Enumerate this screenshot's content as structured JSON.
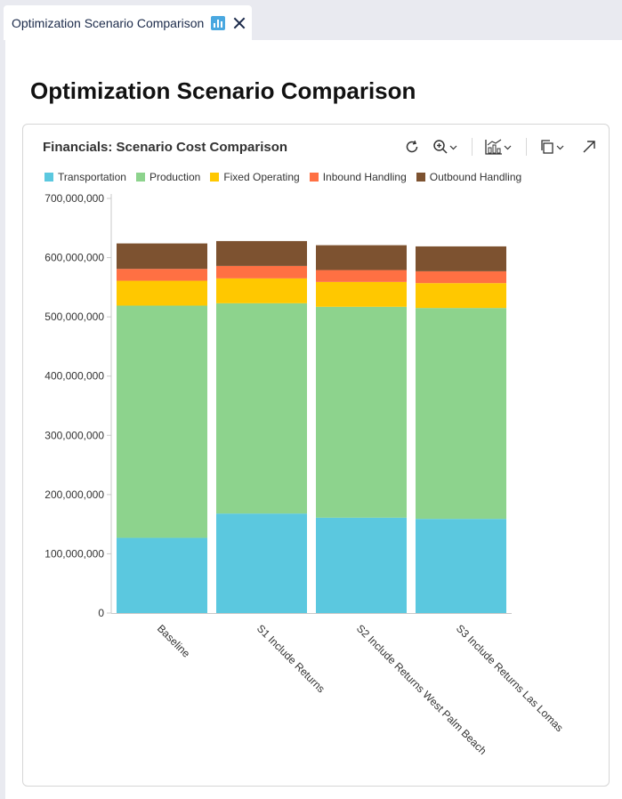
{
  "tab": {
    "title": "Optimization Scenario Comparison",
    "chart_icon": "bar-chart-icon",
    "close_icon": "close-icon"
  },
  "page": {
    "title": "Optimization Scenario Comparison"
  },
  "card": {
    "title": "Financials: Scenario Cost Comparison",
    "toolbar": [
      "refresh-icon",
      "zoom-in-icon",
      "chart-type-icon",
      "copy-icon",
      "expand-icon"
    ]
  },
  "colors": {
    "Transportation": "#5bc8df",
    "Production": "#8dd38d",
    "Fixed Operating": "#ffc800",
    "Inbound Handling": "#ff7043",
    "Outbound Handling": "#7d5230"
  },
  "chart_data": {
    "type": "bar",
    "stacked": true,
    "title": "Financials: Scenario Cost Comparison",
    "categories": [
      "Baseline",
      "S1 Include Returns",
      "S2 Include Returns West Palm Beach",
      "S3 Include Returns Las Lomas"
    ],
    "series": [
      {
        "name": "Transportation",
        "values": [
          127000000,
          168000000,
          161000000,
          159000000
        ]
      },
      {
        "name": "Production",
        "values": [
          392000000,
          355000000,
          356000000,
          356000000
        ]
      },
      {
        "name": "Fixed Operating",
        "values": [
          42000000,
          42000000,
          42000000,
          42000000
        ]
      },
      {
        "name": "Inbound Handling",
        "values": [
          20000000,
          21000000,
          20000000,
          20000000
        ]
      },
      {
        "name": "Outbound Handling",
        "values": [
          43000000,
          42000000,
          42000000,
          42000000
        ]
      }
    ],
    "xlabel": "",
    "ylabel": "",
    "ylim": [
      0,
      700000000
    ],
    "yticks": [
      "0",
      "100,000,000",
      "200,000,000",
      "300,000,000",
      "400,000,000",
      "500,000,000",
      "600,000,000",
      "700,000,000"
    ],
    "legend": "top-left",
    "grid": false
  }
}
